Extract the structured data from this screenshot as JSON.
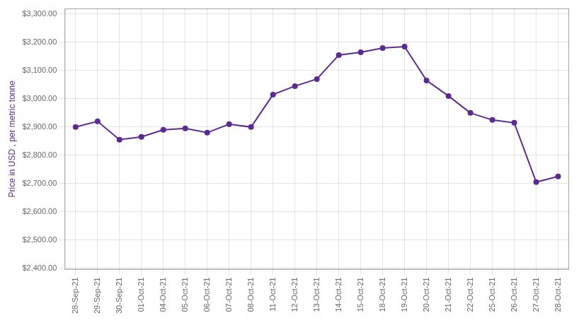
{
  "chart_data": {
    "type": "line",
    "ylabel": "Price in USD , per metric tonne",
    "categories": [
      "28-Sep-21",
      "29-Sep-21",
      "30-Sep-21",
      "01-Oct-21",
      "04-Oct-21",
      "05-Oct-21",
      "06-Oct-21",
      "07-Oct-21",
      "08-Oct-21",
      "11-Oct-21",
      "12-Oct-21",
      "13-Oct-21",
      "14-Oct-21",
      "15-Oct-21",
      "18-Oct-21",
      "19-Oct-21",
      "20-Oct-21",
      "21-Oct-21",
      "22-Oct-21",
      "25-Oct-21",
      "26-Oct-21",
      "27-Oct-21",
      "28-Oct-21"
    ],
    "values": [
      2900,
      2920,
      2855,
      2865,
      2890,
      2895,
      2880,
      2910,
      2900,
      3015,
      3045,
      3070,
      3155,
      3165,
      3180,
      3185,
      3065,
      3010,
      2950,
      2925,
      2915,
      2705,
      2725
    ],
    "color": "#5B2C8D",
    "marker": "o",
    "ylim": [
      2395,
      3320
    ],
    "yticks": [
      {
        "value": 2400,
        "label": "$2,400.00"
      },
      {
        "value": 2500,
        "label": "$2,500.00"
      },
      {
        "value": 2600,
        "label": "$2,600.00"
      },
      {
        "value": 2700,
        "label": "$2,700.00"
      },
      {
        "value": 2800,
        "label": "$2,800.00"
      },
      {
        "value": 2900,
        "label": "$2,900.00"
      },
      {
        "value": 3000,
        "label": "$3,000.00"
      },
      {
        "value": 3100,
        "label": "$3,100.00"
      },
      {
        "value": 3200,
        "label": "$3,200.00"
      },
      {
        "value": 3300,
        "label": "$3,300.00"
      }
    ],
    "grid": true
  }
}
